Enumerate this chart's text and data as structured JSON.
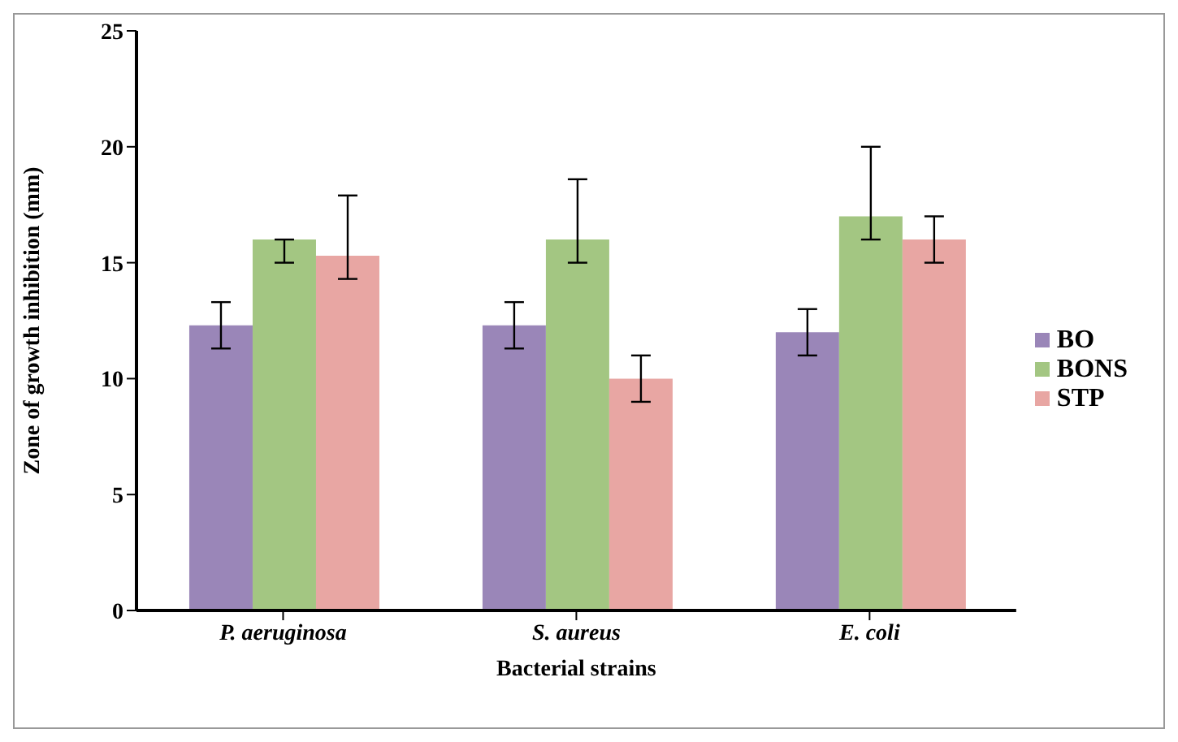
{
  "chart_data": {
    "type": "bar",
    "xlabel": "Bacterial strains",
    "ylabel": "Zone of growth inhibition (mm)",
    "categories": [
      "P. aeruginosa",
      "S. aureus",
      "E. coli"
    ],
    "series": [
      {
        "name": "BO",
        "color": "#9a86b8",
        "values": [
          12.3,
          12.3,
          12
        ],
        "errors": [
          [
            11.3,
            13.3
          ],
          [
            11.3,
            13.3
          ],
          [
            11,
            13
          ]
        ]
      },
      {
        "name": "BONS",
        "color": "#a3c682",
        "values": [
          16,
          16,
          17
        ],
        "errors": [
          [
            15,
            16
          ],
          [
            15,
            18.6
          ],
          [
            16,
            20
          ]
        ]
      },
      {
        "name": "STP",
        "color": "#e8a6a3",
        "values": [
          15.3,
          10,
          16
        ],
        "errors": [
          [
            14.3,
            17.9
          ],
          [
            9,
            11
          ],
          [
            15,
            17
          ]
        ]
      }
    ],
    "ylim": [
      0,
      25
    ],
    "yticks": [
      0,
      5,
      10,
      15,
      20,
      25
    ],
    "grid": false,
    "legend": "right"
  }
}
